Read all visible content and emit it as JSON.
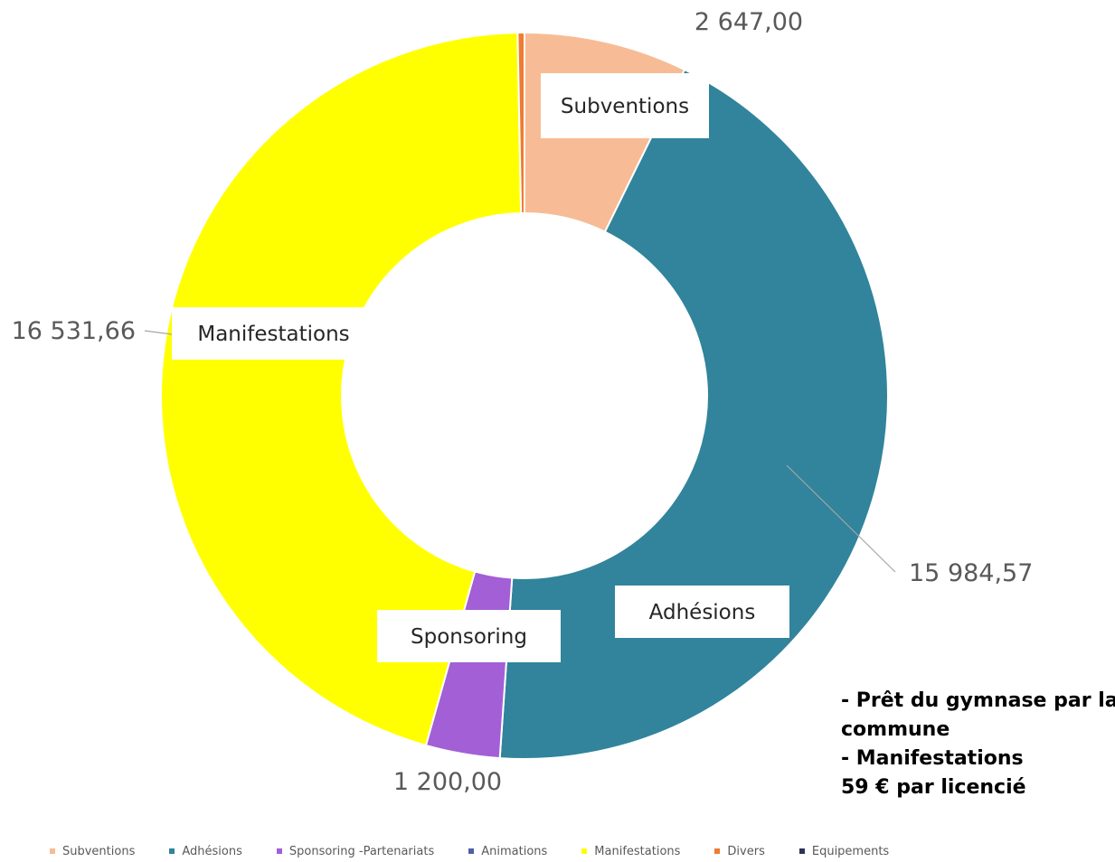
{
  "chart_data": {
    "type": "pie",
    "variant": "doughnut",
    "title": "",
    "categories": [
      "Subventions",
      "Adhésions",
      "Sponsoring -Partenariats",
      "Animations",
      "Manifestations",
      "Divers",
      "Equipements"
    ],
    "values": [
      2647.0,
      15984.57,
      1200.0,
      0,
      16531.66,
      110,
      0
    ],
    "value_labels": [
      "2 647,00",
      "15 984,57",
      "1 200,00",
      "",
      "16 531,66",
      "",
      ""
    ],
    "category_labels": [
      "Subventions",
      "Adhésions",
      "Sponsoring",
      "",
      "Manifestations",
      "",
      ""
    ],
    "colors": [
      "#f7bc95",
      "#31849b",
      "#a35fd6",
      "#4f5fa8",
      "#ffff00",
      "#ed7d31",
      "#2e3558"
    ],
    "legend_position": "bottom"
  },
  "note": {
    "lines": [
      "- Prêt du gymnase par la",
      "commune",
      "- Manifestations",
      "59 € par licencié"
    ]
  }
}
